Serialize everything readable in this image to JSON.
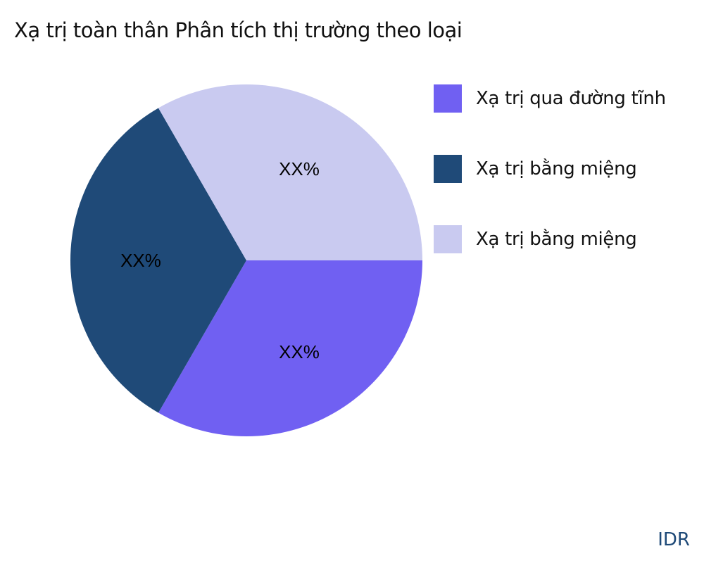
{
  "chart_data": {
    "type": "pie",
    "title": "Xạ trị toàn thân Phân tích thị trường theo loại",
    "slices": [
      {
        "name": "Xạ trị qua đường tĩnh",
        "value": 33.33,
        "label": "XX%",
        "color": "#7060f2"
      },
      {
        "name": "Xạ trị bằng miệng",
        "value": 33.33,
        "label": "XX%",
        "color": "#1f4a78"
      },
      {
        "name": "Xạ trị bằng miệng",
        "value": 33.33,
        "label": "XX%",
        "color": "#c9caf0"
      }
    ],
    "start_angle_deg": 0,
    "direction": "clockwise",
    "legend_position": "right"
  },
  "watermark": "IDR"
}
